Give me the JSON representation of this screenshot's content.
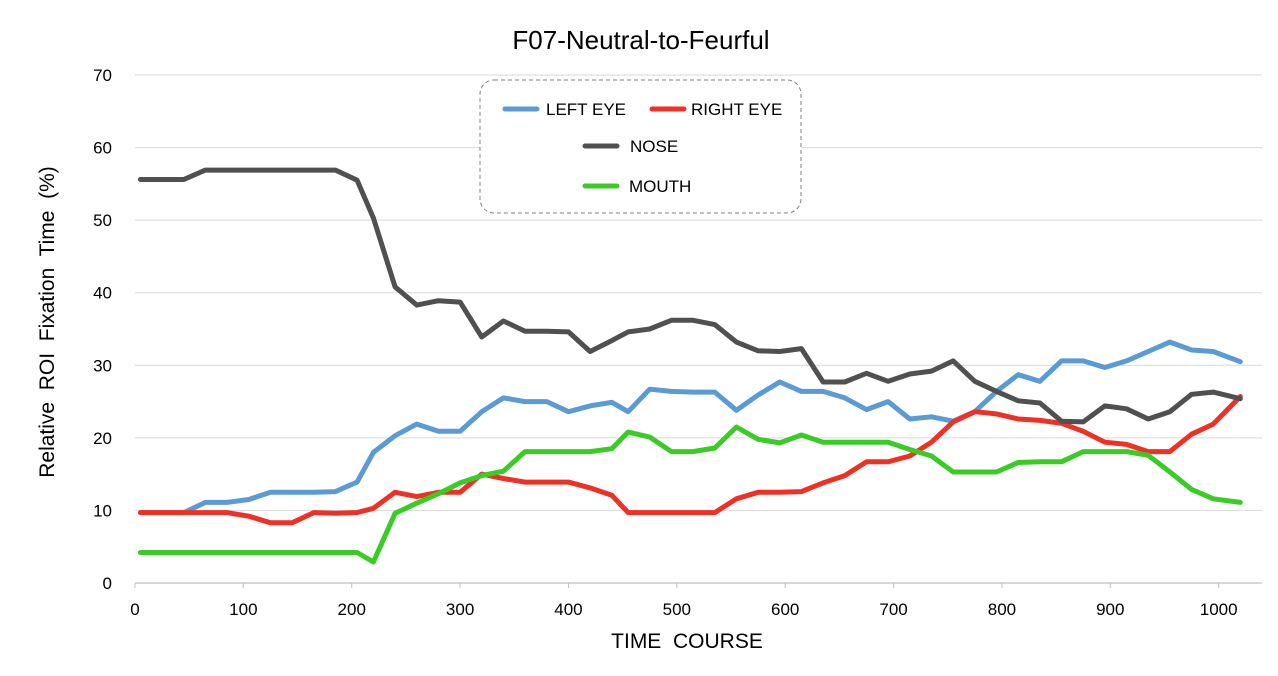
{
  "chart_data": {
    "type": "line",
    "title": "F07-Neutral-to-Feurful",
    "xlabel": "TIME  COURSE",
    "ylabel": "Relative  ROI  Fixation  Time  (%)",
    "xlim": [
      0,
      1040
    ],
    "ylim": [
      0,
      70
    ],
    "xticks": [
      0,
      100,
      200,
      300,
      400,
      500,
      600,
      700,
      800,
      900,
      1000
    ],
    "yticks": [
      0,
      10,
      20,
      30,
      40,
      50,
      60,
      70
    ],
    "grid": "horizontal",
    "legend_position": "top-center",
    "x": [
      5,
      25,
      45,
      65,
      85,
      105,
      125,
      145,
      165,
      185,
      205,
      220,
      240,
      260,
      280,
      300,
      320,
      340,
      360,
      380,
      400,
      420,
      440,
      455,
      475,
      495,
      515,
      535,
      555,
      575,
      595,
      615,
      635,
      655,
      675,
      695,
      715,
      735,
      755,
      775,
      795,
      815,
      835,
      855,
      875,
      895,
      915,
      935,
      955,
      975,
      995,
      1020
    ],
    "series": [
      {
        "name": "LEFT EYE",
        "color": "#5b9bd5",
        "values": [
          9.7,
          9.7,
          9.7,
          11.1,
          11.1,
          11.5,
          12.5,
          12.5,
          12.5,
          12.6,
          13.9,
          18.0,
          20.3,
          21.9,
          20.9,
          20.9,
          23.6,
          25.5,
          25.0,
          25.0,
          23.6,
          24.4,
          24.9,
          23.6,
          26.7,
          26.4,
          26.3,
          26.3,
          23.8,
          25.9,
          27.7,
          26.4,
          26.4,
          25.5,
          23.9,
          25.0,
          22.6,
          22.9,
          22.3,
          23.6,
          26.4,
          28.7,
          27.8,
          30.6,
          30.6,
          29.7,
          30.6,
          31.9,
          33.2,
          32.1,
          31.9,
          30.5
        ]
      },
      {
        "name": "RIGHT EYE",
        "color": "#ee3124",
        "values": [
          9.7,
          9.7,
          9.7,
          9.7,
          9.7,
          9.2,
          8.3,
          8.3,
          9.7,
          9.6,
          9.7,
          10.3,
          12.5,
          11.9,
          12.5,
          12.5,
          15.0,
          14.4,
          13.9,
          13.9,
          13.9,
          13.1,
          12.1,
          9.7,
          9.7,
          9.7,
          9.7,
          9.7,
          11.6,
          12.5,
          12.5,
          12.6,
          13.8,
          14.8,
          16.7,
          16.7,
          17.5,
          19.4,
          22.2,
          23.6,
          23.3,
          22.6,
          22.4,
          22.0,
          20.9,
          19.4,
          19.1,
          18.1,
          18.1,
          20.5,
          21.9,
          25.7
        ]
      },
      {
        "name": "NOSE",
        "color": "#505050",
        "values": [
          55.6,
          55.6,
          55.6,
          56.9,
          56.9,
          56.9,
          56.9,
          56.9,
          56.9,
          56.9,
          55.5,
          50.3,
          40.8,
          38.3,
          38.9,
          38.7,
          33.9,
          36.1,
          34.7,
          34.7,
          34.6,
          31.9,
          33.4,
          34.6,
          35.0,
          36.2,
          36.2,
          35.6,
          33.2,
          32.0,
          31.9,
          32.3,
          27.7,
          27.7,
          28.9,
          27.8,
          28.8,
          29.2,
          30.6,
          27.8,
          26.4,
          25.1,
          24.8,
          22.3,
          22.2,
          24.4,
          24.0,
          22.6,
          23.6,
          26.0,
          26.3,
          25.4
        ]
      },
      {
        "name": "MOUTH",
        "color": "#39cc25",
        "values": [
          4.2,
          4.2,
          4.2,
          4.2,
          4.2,
          4.2,
          4.2,
          4.2,
          4.2,
          4.2,
          4.2,
          2.9,
          9.6,
          11.0,
          12.3,
          13.8,
          14.8,
          15.4,
          18.1,
          18.1,
          18.1,
          18.1,
          18.5,
          20.8,
          20.1,
          18.1,
          18.1,
          18.6,
          21.5,
          19.8,
          19.3,
          20.4,
          19.4,
          19.4,
          19.4,
          19.4,
          18.4,
          17.5,
          15.3,
          15.3,
          15.3,
          16.6,
          16.7,
          16.7,
          18.1,
          18.1,
          18.1,
          17.6,
          15.3,
          12.9,
          11.6,
          11.1
        ]
      }
    ]
  }
}
